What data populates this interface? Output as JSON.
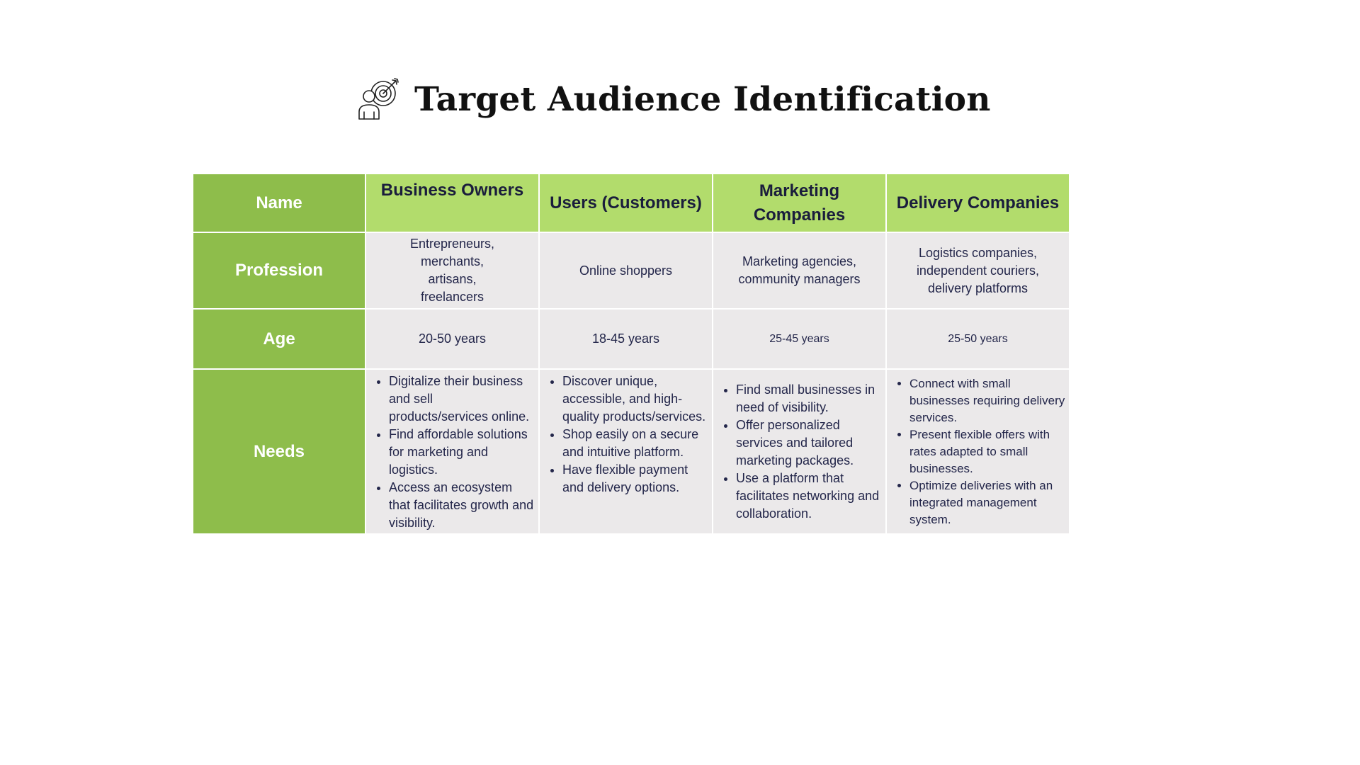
{
  "title": "Target Audience Identification",
  "title_icon": "target-audience-icon",
  "colors": {
    "row_header_bg": "#8ebd4b",
    "col_header_bg": "#b2dc6c",
    "cell_bg": "#ebe9ea",
    "header_text": "#1a1d3c",
    "cell_text": "#23264a"
  },
  "table": {
    "rows": {
      "name": "Name",
      "profession": "Profession",
      "age": "Age",
      "needs": "Needs"
    },
    "columns": [
      {
        "name": "Business Owners",
        "profession": "Entrepreneurs,\nmerchants,\nartisans,\nfreelancers",
        "age": "20-50 years",
        "needs": [
          "Digitalize their business and sell products/services online.",
          "Find affordable solutions for marketing and logistics.",
          "Access an ecosystem that facilitates growth and visibility."
        ]
      },
      {
        "name": "Users (Customers)",
        "profession": "Online shoppers",
        "age": "18-45 years",
        "needs": [
          "Discover unique, accessible, and high-quality products/services.",
          "Shop easily on a secure and intuitive platform.",
          "Have flexible payment and delivery options."
        ]
      },
      {
        "name": "Marketing Companies",
        "profession": "Marketing agencies,\ncommunity managers",
        "age": "25-45 years",
        "needs": [
          "Find small businesses in need of visibility.",
          "Offer personalized services and tailored marketing packages.",
          "Use a platform that facilitates networking and collaboration."
        ]
      },
      {
        "name": "Delivery Companies",
        "profession": "Logistics companies,\nindependent couriers,\ndelivery platforms",
        "age": "25-50 years",
        "needs": [
          "Connect with small businesses requiring delivery services.",
          "Present flexible offers with rates adapted to small businesses.",
          "Optimize deliveries with an integrated management system."
        ]
      }
    ]
  }
}
